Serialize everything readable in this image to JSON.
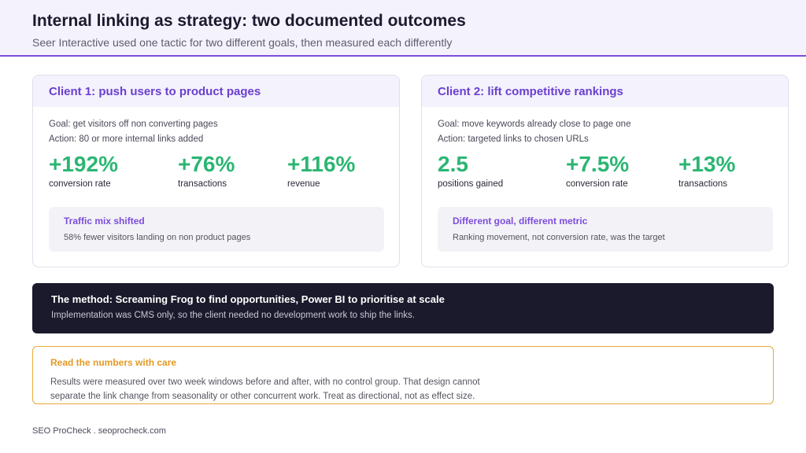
{
  "header": {
    "title": "Internal linking as strategy: two documented outcomes",
    "subtitle": "Seer Interactive used one tactic for two different goals, then measured each differently"
  },
  "cards": [
    {
      "title": "Client 1: push users to product pages",
      "lines": [
        "Goal: get visitors off non converting pages",
        "Action: 80 or more internal links added"
      ],
      "stats": [
        {
          "value": "+192%",
          "label": "conversion rate"
        },
        {
          "value": "+76%",
          "label": "transactions"
        },
        {
          "value": "+116%",
          "label": "revenue"
        }
      ],
      "callout": {
        "title": "Traffic mix shifted",
        "text": "58% fewer visitors landing on non product pages"
      }
    },
    {
      "title": "Client 2: lift competitive rankings",
      "lines": [
        "Goal: move keywords already close to page one",
        "Action: targeted links to chosen URLs"
      ],
      "stats": [
        {
          "value": "2.5",
          "label": "positions gained"
        },
        {
          "value": "+7.5%",
          "label": "conversion rate"
        },
        {
          "value": "+13%",
          "label": "transactions"
        }
      ],
      "callout": {
        "title": "Different goal, different metric",
        "text": "Ranking movement, not conversion rate, was the target"
      }
    }
  ],
  "method": {
    "title": "The method: Screaming Frog to find opportunities, Power BI to prioritise at scale",
    "text": "Implementation was CMS only, so the client needed no development work to ship the links."
  },
  "caution": {
    "title": "Read the numbers with care",
    "lines": [
      "Results were measured over two week windows before and after, with no control group. That design cannot",
      "separate the link change from seasonality or other concurrent work. Treat as directional, not as effect size."
    ]
  },
  "footer": {
    "text": "SEO ProCheck . seoprocheck.com"
  },
  "colors": {
    "accent": "#7c4ddc",
    "positive": "#2bb673",
    "warning": "#e8a93a",
    "dark": "#1b1a2c"
  }
}
